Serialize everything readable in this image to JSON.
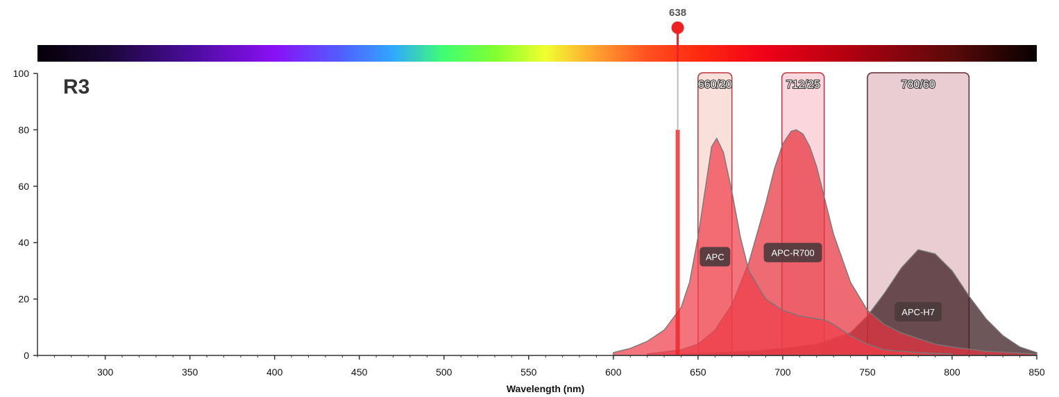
{
  "chart_data": {
    "type": "area",
    "title": "R3",
    "xlabel": "Wavelength (nm)",
    "ylabel": "",
    "xlim": [
      260,
      850
    ],
    "ylim": [
      0,
      100
    ],
    "x_ticks": [
      300,
      350,
      400,
      450,
      500,
      550,
      600,
      650,
      700,
      750,
      800,
      850
    ],
    "y_ticks": [
      0,
      20,
      40,
      60,
      80,
      100
    ],
    "grid": false,
    "laser": {
      "wavelength": 638,
      "label": "638",
      "color": "#ee2222",
      "bar_height": 80
    },
    "filters": [
      {
        "name": "660/20",
        "center": 660,
        "width": 20,
        "fill": "#f6c7bb",
        "stroke": "#c0303a"
      },
      {
        "name": "712/25",
        "center": 712,
        "width": 25,
        "fill": "#f7b4bf",
        "stroke": "#c0303a"
      },
      {
        "name": "780/60",
        "center": 780,
        "width": 60,
        "fill": "#d9a4ad",
        "stroke": "#5a2a30"
      }
    ],
    "series": [
      {
        "name": "APC-H7",
        "color": "#3d1f23",
        "opacity": 0.75,
        "label_at": [
          780,
          15.5
        ],
        "x": [
          640,
          660,
          680,
          700,
          720,
          740,
          750,
          760,
          770,
          780,
          790,
          800,
          810,
          820,
          830,
          840,
          850
        ],
        "y": [
          0.5,
          1,
          1.5,
          2.5,
          4,
          8,
          14,
          22,
          31,
          37.5,
          36,
          30,
          21,
          13,
          7,
          3,
          1
        ]
      },
      {
        "name": "APC-R700",
        "color": "#e8323f",
        "opacity": 0.72,
        "label_at": [
          706,
          36.5
        ],
        "x": [
          620,
          640,
          650,
          660,
          670,
          680,
          690,
          695,
          700,
          705,
          708,
          712,
          716,
          720,
          725,
          730,
          740,
          750,
          760,
          770,
          780,
          790,
          800,
          820,
          850
        ],
        "y": [
          0.5,
          2,
          4,
          9,
          18,
          33,
          54,
          66,
          75,
          79.5,
          80,
          78.5,
          74,
          67,
          55,
          43,
          26,
          16,
          11,
          8,
          6,
          4,
          3,
          1.5,
          0.5
        ]
      },
      {
        "name": "APC",
        "color": "#f03e4b",
        "opacity": 0.72,
        "label_at": [
          660,
          35
        ],
        "x": [
          600,
          610,
          620,
          630,
          640,
          645,
          650,
          655,
          658,
          661,
          665,
          670,
          675,
          680,
          690,
          700,
          710,
          720,
          725,
          730,
          740,
          750,
          760,
          780,
          800
        ],
        "y": [
          1,
          2.5,
          5,
          9,
          17,
          26,
          42,
          62,
          74,
          77,
          72,
          58,
          42,
          30,
          20,
          16,
          14,
          13,
          12.5,
          11,
          7,
          4,
          2,
          1,
          0.5
        ]
      }
    ]
  },
  "spectrum_bar": {
    "range": [
      260,
      850
    ],
    "stops": [
      {
        "nm": 260,
        "color": "#050008"
      },
      {
        "nm": 300,
        "color": "#1a0635"
      },
      {
        "nm": 350,
        "color": "#4a0c9c"
      },
      {
        "nm": 400,
        "color": "#8a10f5"
      },
      {
        "nm": 440,
        "color": "#5060ff"
      },
      {
        "nm": 470,
        "color": "#30a8ff"
      },
      {
        "nm": 500,
        "color": "#40ff70"
      },
      {
        "nm": 530,
        "color": "#80ff30"
      },
      {
        "nm": 560,
        "color": "#f0ff30"
      },
      {
        "nm": 590,
        "color": "#ffa030"
      },
      {
        "nm": 620,
        "color": "#ff5020"
      },
      {
        "nm": 650,
        "color": "#ff2a10"
      },
      {
        "nm": 690,
        "color": "#f00018"
      },
      {
        "nm": 740,
        "color": "#b00010"
      },
      {
        "nm": 800,
        "color": "#5a0a0a"
      },
      {
        "nm": 850,
        "color": "#080000"
      }
    ]
  }
}
